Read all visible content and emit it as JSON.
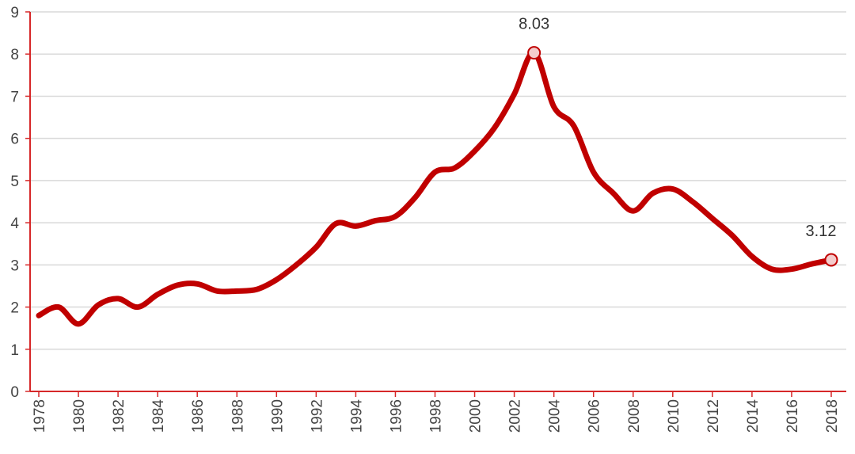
{
  "chart_data": {
    "type": "line",
    "title": "",
    "xlabel": "",
    "ylabel": "",
    "ylim": [
      0,
      9
    ],
    "xlim": [
      1978,
      2018
    ],
    "grid": true,
    "y_ticks": [
      "0",
      "1",
      "2",
      "3",
      "4",
      "5",
      "6",
      "7",
      "8",
      "9"
    ],
    "x_ticks": [
      "1978",
      "1980",
      "1982",
      "1984",
      "1986",
      "1988",
      "1990",
      "1992",
      "1994",
      "1996",
      "1998",
      "2000",
      "2002",
      "2004",
      "2006",
      "2008",
      "2010",
      "2012",
      "2014",
      "2016",
      "2018"
    ],
    "series": [
      {
        "name": "",
        "color": "#c00000",
        "x": [
          1978,
          1979,
          1980,
          1981,
          1982,
          1983,
          1984,
          1985,
          1986,
          1987,
          1988,
          1989,
          1990,
          1991,
          1992,
          1993,
          1994,
          1995,
          1996,
          1997,
          1998,
          1999,
          2000,
          2001,
          2002,
          2003,
          2004,
          2005,
          2006,
          2007,
          2008,
          2009,
          2010,
          2011,
          2012,
          2013,
          2014,
          2015,
          2016,
          2017,
          2018
        ],
        "y": [
          1.8,
          2.0,
          1.6,
          2.05,
          2.2,
          2.0,
          2.3,
          2.52,
          2.55,
          2.38,
          2.38,
          2.42,
          2.65,
          3.0,
          3.42,
          3.98,
          3.92,
          4.05,
          4.15,
          4.6,
          5.2,
          5.3,
          5.7,
          6.25,
          7.05,
          8.03,
          6.75,
          6.3,
          5.2,
          4.7,
          4.28,
          4.7,
          4.8,
          4.5,
          4.1,
          3.7,
          3.2,
          2.9,
          2.9,
          3.02,
          3.12
        ]
      }
    ],
    "annotations": [
      {
        "x": 2003,
        "y": 8.03,
        "text": "8.03"
      },
      {
        "x": 2018,
        "y": 3.12,
        "text": "3.12"
      }
    ],
    "colors": {
      "axis": "#d62728",
      "grid": "#d9d9d9",
      "marker_fill": "#f4cccc",
      "marker_stroke": "#c00000"
    }
  }
}
